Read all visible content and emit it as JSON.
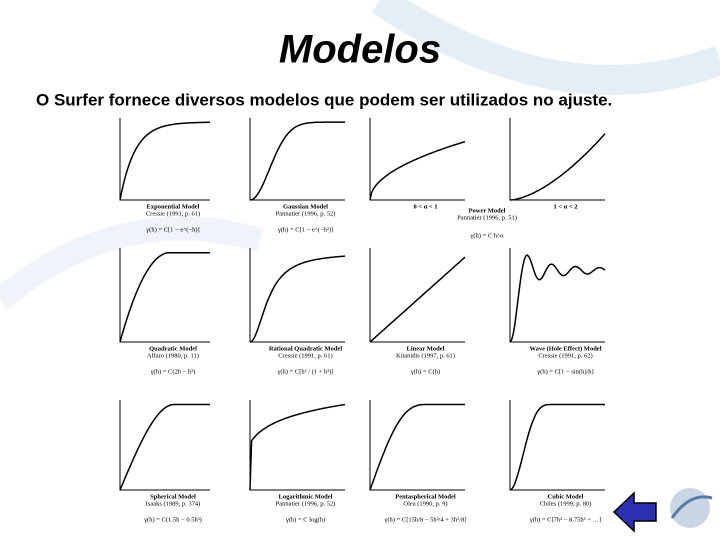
{
  "header": {
    "title": "Modelos",
    "subtitle": "O Surfer fornece diversos modelos que podem ser utilizados no ajuste."
  },
  "models": [
    {
      "name": "Exponential Model",
      "ref": "Cressie (1991, p. 61)",
      "formula": "γ(h) = C[1 − e^(−h)]"
    },
    {
      "name": "Gaussian Model",
      "ref": "Pannatier (1996, p. 52)",
      "formula": "γ(h) = C[1 − e^(−h²)]"
    },
    {
      "name": "0 < α < 1"
    },
    {
      "name": "1 < α < 2"
    },
    {
      "name": "Quadratic Model",
      "ref": "Alfaro (1980, p. 11)",
      "formula": "γ(h) = C(2h − h²)"
    },
    {
      "name": "Rational Quadratic Model",
      "ref": "Cressie (1991, p. 61)",
      "formula": "γ(h) = C[h² / (1 + h²)]"
    },
    {
      "name": "Linear Model",
      "ref": "Kitanidis (1997, p. 61)",
      "formula": "γ(h) = C(h)"
    },
    {
      "name": "Wave (Hole Effect) Model",
      "ref": "Cressie (1991, p. 62)",
      "formula": "γ(h) = C[1 − sin(h)/h]"
    },
    {
      "name": "Spherical Model",
      "ref": "Isaaks (1989, p. 374)",
      "formula": "γ(h) = C(1.5h − 0.5h³)"
    },
    {
      "name": "Logarithmic Model",
      "ref": "Pannatier (1996, p. 52)",
      "formula": "γ(h) = C log(h)"
    },
    {
      "name": "Pentaspherical Model",
      "ref": "Olea (1990, p. 9)",
      "formula": "γ(h) = C[15h/8 − 5h³/4 + 3h⁵/8]"
    },
    {
      "name": "Cubic Model",
      "ref": "Chiles (1999, p. 80)",
      "formula": "γ(h) = C[7h² − 8.75h³ + …]"
    }
  ],
  "power": {
    "name": "Power Model",
    "ref": "Pannatier (1996, p. 51)",
    "formula": "γ(h) = C h^α"
  }
}
